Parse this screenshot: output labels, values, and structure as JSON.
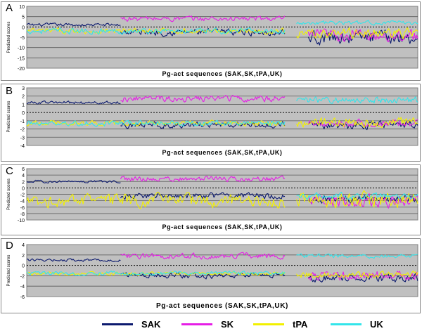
{
  "legend": [
    {
      "name": "SAK",
      "color": "#0c1a6e"
    },
    {
      "name": "SK",
      "color": "#e61ee6"
    },
    {
      "name": "tPA",
      "color": "#f2f000"
    },
    {
      "name": "UK",
      "color": "#33e5ea"
    }
  ],
  "chart_data": [
    {
      "type": "line",
      "panel_label": "A",
      "xlabel": "Pg-act sequences (SAK,SK,tPA,UK)",
      "ylabel": "Predicted scores",
      "ylim": [
        -20,
        10
      ],
      "yticks": [
        10,
        5,
        0,
        -5,
        -10,
        -15,
        -20
      ],
      "grid": true,
      "series": [
        {
          "name": "SAK",
          "segments": [
            {
              "x_range": [
                0,
                0.24
              ],
              "base": 1.0,
              "amp": 1.2
            },
            {
              "x_range": [
                0.24,
                0.66
              ],
              "base": -2.5,
              "amp": 2.5
            },
            {
              "x_range": [
                0.72,
                1.0
              ],
              "base": -5.0,
              "amp": 5.0
            }
          ]
        },
        {
          "name": "SK",
          "segments": [
            {
              "x_range": [
                0.24,
                0.66
              ],
              "base": 4.0,
              "amp": 2.0
            },
            {
              "x_range": [
                0.72,
                1.0
              ],
              "base": -4.0,
              "amp": 4.5
            }
          ]
        },
        {
          "name": "tPA",
          "segments": [
            {
              "x_range": [
                0.0,
                0.66
              ],
              "base": -2.0,
              "amp": 2.0
            },
            {
              "x_range": [
                0.69,
                1.0
              ],
              "base": -3.0,
              "amp": 3.5
            }
          ]
        },
        {
          "name": "UK",
          "segments": [
            {
              "x_range": [
                0.0,
                0.66
              ],
              "base": -2.0,
              "amp": 2.0
            },
            {
              "x_range": [
                0.69,
                1.0
              ],
              "base": 2.0,
              "amp": 1.5
            }
          ]
        }
      ]
    },
    {
      "type": "line",
      "panel_label": "B",
      "xlabel": "Pg-act sequences (SAK,SK,tPA,UK)",
      "ylabel": "Predicted scores",
      "ylim": [
        -4,
        3
      ],
      "yticks": [
        3,
        2,
        1,
        0,
        -1,
        -2,
        -3,
        -4
      ],
      "grid": true,
      "series": [
        {
          "name": "SAK",
          "segments": [
            {
              "x_range": [
                0,
                0.24
              ],
              "base": 1.2,
              "amp": 0.3
            },
            {
              "x_range": [
                0.24,
                0.66
              ],
              "base": -1.5,
              "amp": 0.6
            },
            {
              "x_range": [
                0.72,
                1.0
              ],
              "base": -1.5,
              "amp": 0.8
            }
          ]
        },
        {
          "name": "SK",
          "segments": [
            {
              "x_range": [
                0.24,
                0.66
              ],
              "base": 1.7,
              "amp": 0.6
            },
            {
              "x_range": [
                0.72,
                1.0
              ],
              "base": -1.3,
              "amp": 0.7
            }
          ]
        },
        {
          "name": "tPA",
          "segments": [
            {
              "x_range": [
                0.0,
                0.66
              ],
              "base": -1.3,
              "amp": 0.5
            },
            {
              "x_range": [
                0.69,
                1.0
              ],
              "base": -1.2,
              "amp": 0.9
            }
          ]
        },
        {
          "name": "UK",
          "segments": [
            {
              "x_range": [
                0.0,
                0.66
              ],
              "base": -1.3,
              "amp": 0.5
            },
            {
              "x_range": [
                0.69,
                1.0
              ],
              "base": 1.5,
              "amp": 0.6
            }
          ]
        }
      ]
    },
    {
      "type": "line",
      "panel_label": "C",
      "xlabel": "Pg-act sequences (SAK,SK,tPA,UK)",
      "ylabel": "Predicted scores",
      "ylim": [
        -10,
        6
      ],
      "yticks": [
        6,
        4,
        2,
        0,
        -2,
        -4,
        -6,
        -8,
        -10
      ],
      "grid": true,
      "series": [
        {
          "name": "SAK",
          "segments": [
            {
              "x_range": [
                0,
                0.24
              ],
              "base": 2.0,
              "amp": 0.6
            },
            {
              "x_range": [
                0.24,
                0.66
              ],
              "base": -2.5,
              "amp": 1.5
            },
            {
              "x_range": [
                0.72,
                1.0
              ],
              "base": -3.5,
              "amp": 2.0
            }
          ]
        },
        {
          "name": "SK",
          "segments": [
            {
              "x_range": [
                0.24,
                0.66
              ],
              "base": 2.8,
              "amp": 1.2
            },
            {
              "x_range": [
                0.72,
                1.0
              ],
              "base": -4.0,
              "amp": 3.0
            }
          ]
        },
        {
          "name": "tPA",
          "segments": [
            {
              "x_range": [
                0.0,
                0.66
              ],
              "base": -4.0,
              "amp": 3.0
            },
            {
              "x_range": [
                0.69,
                1.0
              ],
              "base": -3.5,
              "amp": 3.5
            }
          ]
        },
        {
          "name": "UK",
          "segments": [
            {
              "x_range": [
                0.69,
                1.0
              ],
              "base": -2.5,
              "amp": 1.5
            }
          ]
        }
      ]
    },
    {
      "type": "line",
      "panel_label": "D",
      "xlabel": "Pg-act sequences (SAK,SK,tPA,UK)",
      "ylabel": "Predicted scores",
      "ylim": [
        -6,
        4
      ],
      "yticks": [
        4,
        2,
        0,
        -2,
        -4,
        -6
      ],
      "grid": true,
      "series": [
        {
          "name": "SAK",
          "segments": [
            {
              "x_range": [
                0,
                0.24
              ],
              "base": 1.0,
              "amp": 0.4
            },
            {
              "x_range": [
                0.24,
                0.66
              ],
              "base": -2.0,
              "amp": 0.8
            },
            {
              "x_range": [
                0.72,
                1.0
              ],
              "base": -2.5,
              "amp": 1.2
            }
          ]
        },
        {
          "name": "SK",
          "segments": [
            {
              "x_range": [
                0.24,
                0.66
              ],
              "base": 1.8,
              "amp": 0.8
            },
            {
              "x_range": [
                0.72,
                1.0
              ],
              "base": -2.0,
              "amp": 1.3
            }
          ]
        },
        {
          "name": "tPA",
          "segments": [
            {
              "x_range": [
                0.0,
                0.66
              ],
              "base": -1.6,
              "amp": 0.5
            },
            {
              "x_range": [
                0.69,
                1.0
              ],
              "base": -1.8,
              "amp": 1.0
            }
          ]
        },
        {
          "name": "UK",
          "segments": [
            {
              "x_range": [
                0.0,
                0.66
              ],
              "base": -1.5,
              "amp": 0.6
            },
            {
              "x_range": [
                0.69,
                1.0
              ],
              "base": 1.8,
              "amp": 0.6
            }
          ]
        }
      ]
    }
  ]
}
